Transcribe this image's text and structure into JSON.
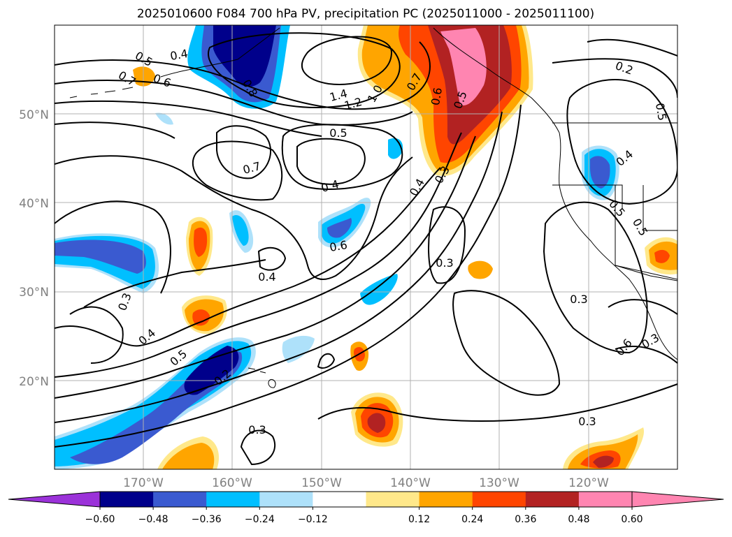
{
  "title": "2025010600 F084 700 hPa PV, precipitation PC (2025011000 - 2025011100)",
  "lat_labels": [
    "50°N",
    "40°N",
    "30°N",
    "20°N"
  ],
  "lon_labels": [
    "170°W",
    "160°W",
    "150°W",
    "140°W",
    "130°W",
    "120°W"
  ],
  "colorbar": {
    "colors": [
      "#9b32d9",
      "#00008b",
      "#3a5ad0",
      "#00bfff",
      "#aee1fa",
      "#ffffff",
      "#ffe88a",
      "#ffa500",
      "#ff4500",
      "#b22222",
      "#ff85b1",
      "#ff85b1"
    ],
    "tick_labels": [
      "−0.60",
      "−0.48",
      "−0.36",
      "−0.24",
      "−0.12",
      "0.12",
      "0.24",
      "0.36",
      "0.48",
      "0.60"
    ]
  },
  "contour_labels": [
    "0.5",
    "0.4",
    "0.7",
    "0.6",
    "0.8",
    "1.4",
    "1.2",
    "1.0",
    "0.7",
    "0.6",
    "0.5",
    "0.3",
    "0.5",
    "0.7",
    "0.4",
    "0.4",
    "0.3",
    "0.6",
    "0.4",
    "0.3",
    "0.3",
    "0.3",
    "0.4",
    "0.5",
    "0.2",
    "0.3",
    "0.2",
    "0.5",
    "0.4",
    "0.5",
    "0.5",
    "0.6",
    "0.3"
  ]
}
